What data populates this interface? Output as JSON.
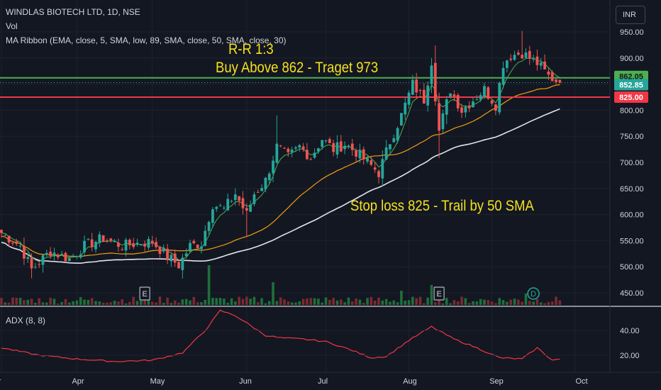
{
  "header": {
    "symbol_line": "WINDLAS BIOTECH LTD, 1D, NSE",
    "volume_label": "Vol",
    "ma_ribbon_label": "MA Ribbon (EMA, close, 5, SMA, low, 89, SMA, close, 50, SMA, close, 30)",
    "currency_button": "INR"
  },
  "annotations": {
    "rr": "R-R 1:3",
    "buy": "Buy Above 862 - Traget 973",
    "stop": "Stop loss 825 - Trail by 50 SMA"
  },
  "colors": {
    "background": "#131722",
    "up": "#26a69a",
    "down": "#ef5350",
    "green_line": "#4caf50",
    "red_line": "#f23645",
    "ema": "#4caf50",
    "sma30": "#f39c12",
    "sma50": "#e0e3eb",
    "adx": "#f23645",
    "annotation": "#f5e11d"
  },
  "chart_data": [
    {
      "type": "candlestick",
      "y_axis_ticks": [
        "950.00",
        "900.00",
        "850.00",
        "800.00",
        "750.00",
        "700.00",
        "650.00",
        "600.00",
        "550.00",
        "500.00",
        "450.00"
      ],
      "y_tick_values": [
        950,
        900,
        850,
        800,
        750,
        700,
        650,
        600,
        550,
        500,
        450
      ],
      "ylim": [
        428,
        990
      ],
      "x_axis_labels": [
        "Mar",
        "Apr",
        "May",
        "Jun",
        "Jul",
        "Aug",
        "Sep",
        "Oct"
      ],
      "price_tags": [
        {
          "label": "862.05",
          "value": 862.05,
          "kind": "buy-level"
        },
        {
          "label": "852.85",
          "value": 852.85,
          "kind": "last-price"
        },
        {
          "label": "825.00",
          "value": 825,
          "kind": "stop-level"
        }
      ],
      "horizontal_lines": [
        {
          "value": 862.05,
          "color": "#4caf50"
        },
        {
          "value": 825,
          "color": "#f23645"
        }
      ],
      "event_markers": [
        {
          "label": "E",
          "date_index": 38
        },
        {
          "label": "E",
          "date_index": 116
        },
        {
          "label": "D",
          "date_index": 141
        }
      ],
      "anchors": [
        {
          "i": 0,
          "c": 565
        },
        {
          "i": 5,
          "c": 540
        },
        {
          "i": 8,
          "c": 495
        },
        {
          "i": 13,
          "c": 530
        },
        {
          "i": 18,
          "c": 515
        },
        {
          "i": 22,
          "c": 540
        },
        {
          "i": 27,
          "c": 555
        },
        {
          "i": 32,
          "c": 540
        },
        {
          "i": 36,
          "c": 545
        },
        {
          "i": 40,
          "c": 548
        },
        {
          "i": 44,
          "c": 520
        },
        {
          "i": 47,
          "c": 503
        },
        {
          "i": 50,
          "c": 540
        },
        {
          "i": 53,
          "c": 545
        },
        {
          "i": 56,
          "c": 620
        },
        {
          "i": 59,
          "c": 610
        },
        {
          "i": 62,
          "c": 640
        },
        {
          "i": 65,
          "c": 600
        },
        {
          "i": 67,
          "c": 640
        },
        {
          "i": 70,
          "c": 665
        },
        {
          "i": 73,
          "c": 730
        },
        {
          "i": 76,
          "c": 710
        },
        {
          "i": 79,
          "c": 730
        },
        {
          "i": 82,
          "c": 710
        },
        {
          "i": 85,
          "c": 745
        },
        {
          "i": 88,
          "c": 725
        },
        {
          "i": 91,
          "c": 735
        },
        {
          "i": 94,
          "c": 720
        },
        {
          "i": 97,
          "c": 700
        },
        {
          "i": 100,
          "c": 680
        },
        {
          "i": 103,
          "c": 740
        },
        {
          "i": 106,
          "c": 790
        },
        {
          "i": 109,
          "c": 850
        },
        {
          "i": 112,
          "c": 820
        },
        {
          "i": 114,
          "c": 895
        },
        {
          "i": 116,
          "c": 760
        },
        {
          "i": 119,
          "c": 840
        },
        {
          "i": 122,
          "c": 800
        },
        {
          "i": 125,
          "c": 820
        },
        {
          "i": 128,
          "c": 840
        },
        {
          "i": 131,
          "c": 810
        },
        {
          "i": 133,
          "c": 890
        },
        {
          "i": 135,
          "c": 905
        },
        {
          "i": 138,
          "c": 910
        },
        {
          "i": 140,
          "c": 900
        },
        {
          "i": 142,
          "c": 890
        },
        {
          "i": 145,
          "c": 865
        },
        {
          "i": 148,
          "c": 852.85
        }
      ],
      "series": [
        {
          "name": "EMA 5",
          "source": "close",
          "period": 5,
          "kind": "EMA"
        },
        {
          "name": "SMA 30",
          "source": "close",
          "period": 30,
          "kind": "SMA"
        },
        {
          "name": "SMA 50",
          "source": "close",
          "period": 50,
          "kind": "SMA"
        }
      ]
    },
    {
      "type": "line",
      "title": "ADX (8, 8)",
      "y_axis_ticks": [
        "40.00",
        "20.00"
      ],
      "y_tick_values": [
        40,
        20
      ],
      "ylim": [
        10,
        62
      ],
      "adx_anchors": [
        {
          "i": 0,
          "v": 26
        },
        {
          "i": 10,
          "v": 20
        },
        {
          "i": 20,
          "v": 17
        },
        {
          "i": 30,
          "v": 15
        },
        {
          "i": 40,
          "v": 16
        },
        {
          "i": 48,
          "v": 22
        },
        {
          "i": 54,
          "v": 40
        },
        {
          "i": 58,
          "v": 56
        },
        {
          "i": 62,
          "v": 52
        },
        {
          "i": 66,
          "v": 44
        },
        {
          "i": 70,
          "v": 36
        },
        {
          "i": 74,
          "v": 34
        },
        {
          "i": 80,
          "v": 33
        },
        {
          "i": 86,
          "v": 31
        },
        {
          "i": 92,
          "v": 25
        },
        {
          "i": 98,
          "v": 18
        },
        {
          "i": 102,
          "v": 19
        },
        {
          "i": 108,
          "v": 32
        },
        {
          "i": 114,
          "v": 43
        },
        {
          "i": 120,
          "v": 33
        },
        {
          "i": 126,
          "v": 26
        },
        {
          "i": 132,
          "v": 18
        },
        {
          "i": 138,
          "v": 17
        },
        {
          "i": 142,
          "v": 26
        },
        {
          "i": 146,
          "v": 16
        },
        {
          "i": 148,
          "v": 17
        }
      ]
    }
  ]
}
